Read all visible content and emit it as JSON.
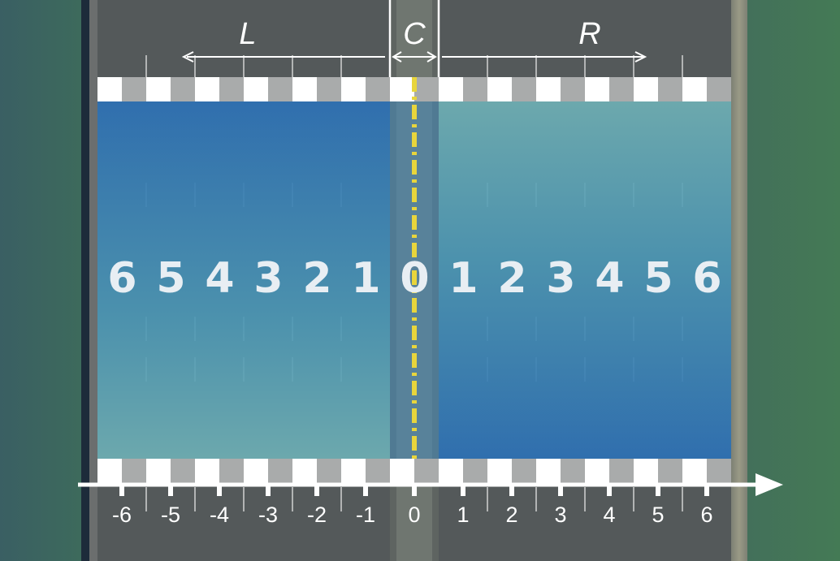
{
  "regions": {
    "left": "L",
    "center": "C",
    "right": "R"
  },
  "lane_numbers": [
    "6",
    "5",
    "4",
    "3",
    "2",
    "1",
    "0",
    "1",
    "2",
    "3",
    "4",
    "5",
    "6"
  ],
  "axis_ticks": [
    "-6",
    "-5",
    "-4",
    "-3",
    "-2",
    "-1",
    "0",
    "1",
    "2",
    "3",
    "4",
    "5",
    "6"
  ],
  "colors": {
    "lane_overlay_blue": "#2e70b2",
    "lane_overlay_teal": "#6eafb4",
    "centerline_yellow": "#e8d53c",
    "road_asphalt": "#54595a",
    "grass_left": "#3a5f63",
    "grass_right": "#447a55",
    "label_white": "#ffffff"
  },
  "icons": {
    "axis_arrow": "right-arrow-icon",
    "dimension_arrows": "double-arrow-icon"
  }
}
